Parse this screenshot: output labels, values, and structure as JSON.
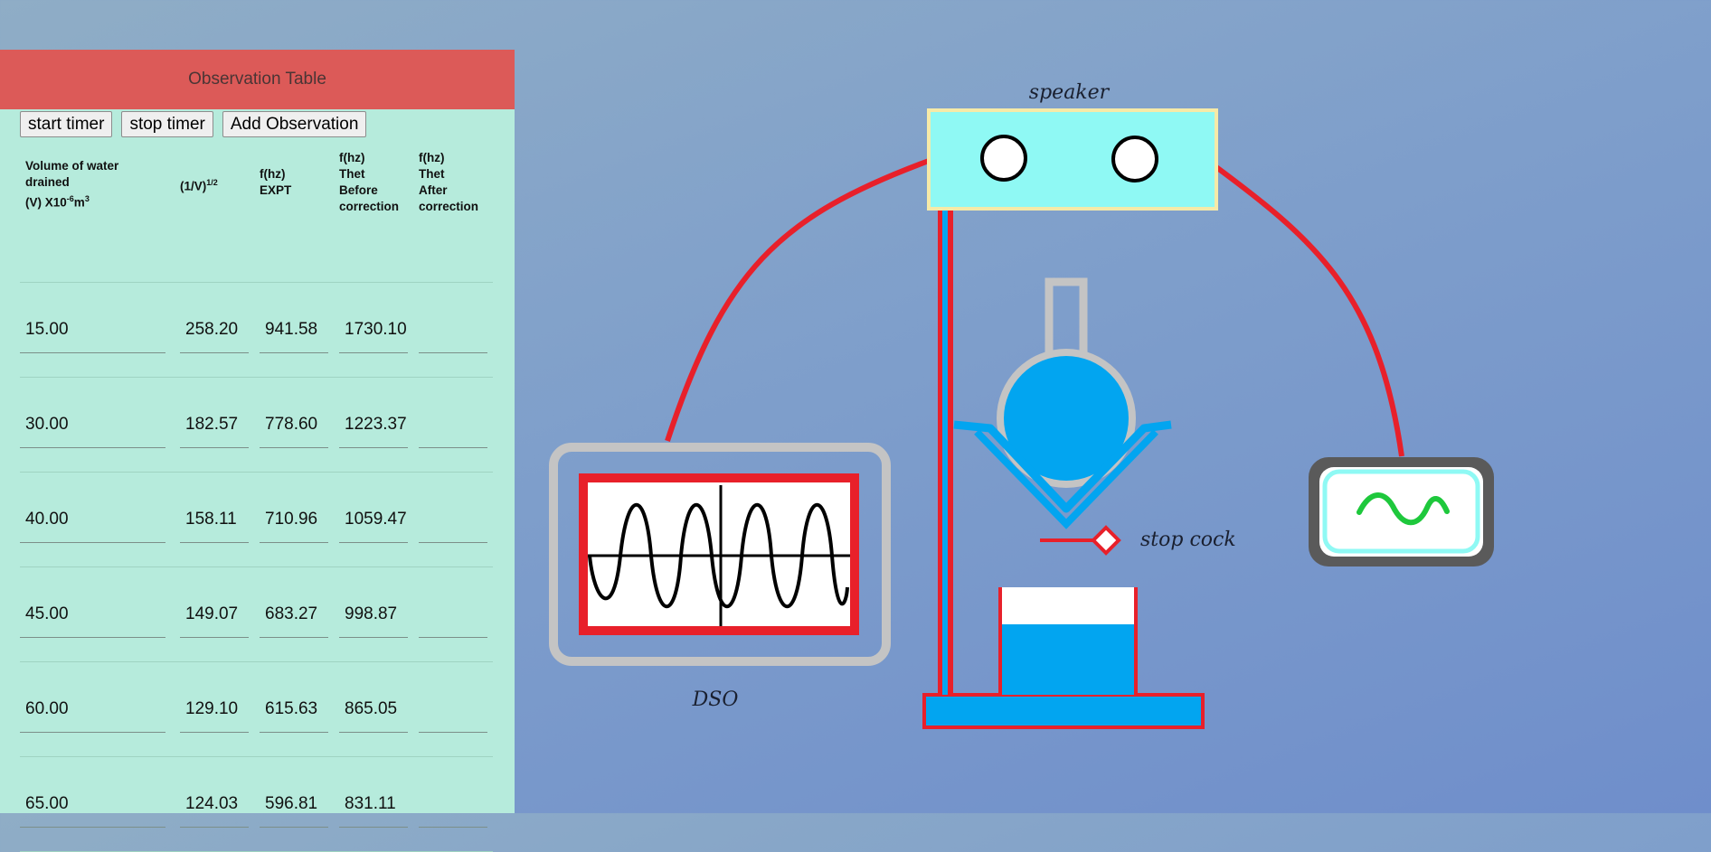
{
  "panel": {
    "title": "Observation Table",
    "buttons": {
      "start": "start timer",
      "stop": "stop timer",
      "add": "Add Observation"
    },
    "headers": {
      "volume_line1": "Volume of water",
      "volume_line2": "drained",
      "volume_line3_prefix": "(V) X10",
      "volume_exp": "-6",
      "volume_unit": "m",
      "volume_unit_exp": "3",
      "inv_sqrt": "(1/V)",
      "inv_sqrt_exp": "1/2",
      "fexpt_line1": "f(hz)",
      "fexpt_line2": "EXPT",
      "fbefore_line1": "f(hz)",
      "fbefore_line2": "Thet",
      "fbefore_line3": "Before",
      "fbefore_line4": "correction",
      "fafter_line1": "f(hz)",
      "fafter_line2": "Thet",
      "fafter_line3": "After",
      "fafter_line4": "correction"
    },
    "rows": [
      {
        "volume": "15.00",
        "inv_sqrt": "258.20",
        "f_expt": "941.58",
        "f_before": "1730.10",
        "f_after": ""
      },
      {
        "volume": "30.00",
        "inv_sqrt": "182.57",
        "f_expt": "778.60",
        "f_before": "1223.37",
        "f_after": ""
      },
      {
        "volume": "40.00",
        "inv_sqrt": "158.11",
        "f_expt": "710.96",
        "f_before": "1059.47",
        "f_after": ""
      },
      {
        "volume": "45.00",
        "inv_sqrt": "149.07",
        "f_expt": "683.27",
        "f_before": "998.87",
        "f_after": ""
      },
      {
        "volume": "60.00",
        "inv_sqrt": "129.10",
        "f_expt": "615.63",
        "f_before": "865.05",
        "f_after": ""
      },
      {
        "volume": "65.00",
        "inv_sqrt": "124.03",
        "f_expt": "596.81",
        "f_before": "831.11",
        "f_after": ""
      }
    ]
  },
  "apparatus": {
    "speaker_label": "speaker",
    "dso_label": "DSO",
    "stopcock_label": "stop cock"
  },
  "colors": {
    "header_bg": "#dc5a58",
    "panel_bg": "#b6ebdc",
    "wire": "#e8202a",
    "water": "#02a5f0",
    "speaker_body": "#8ff9f4",
    "frame_gray": "#c4c4c4"
  }
}
